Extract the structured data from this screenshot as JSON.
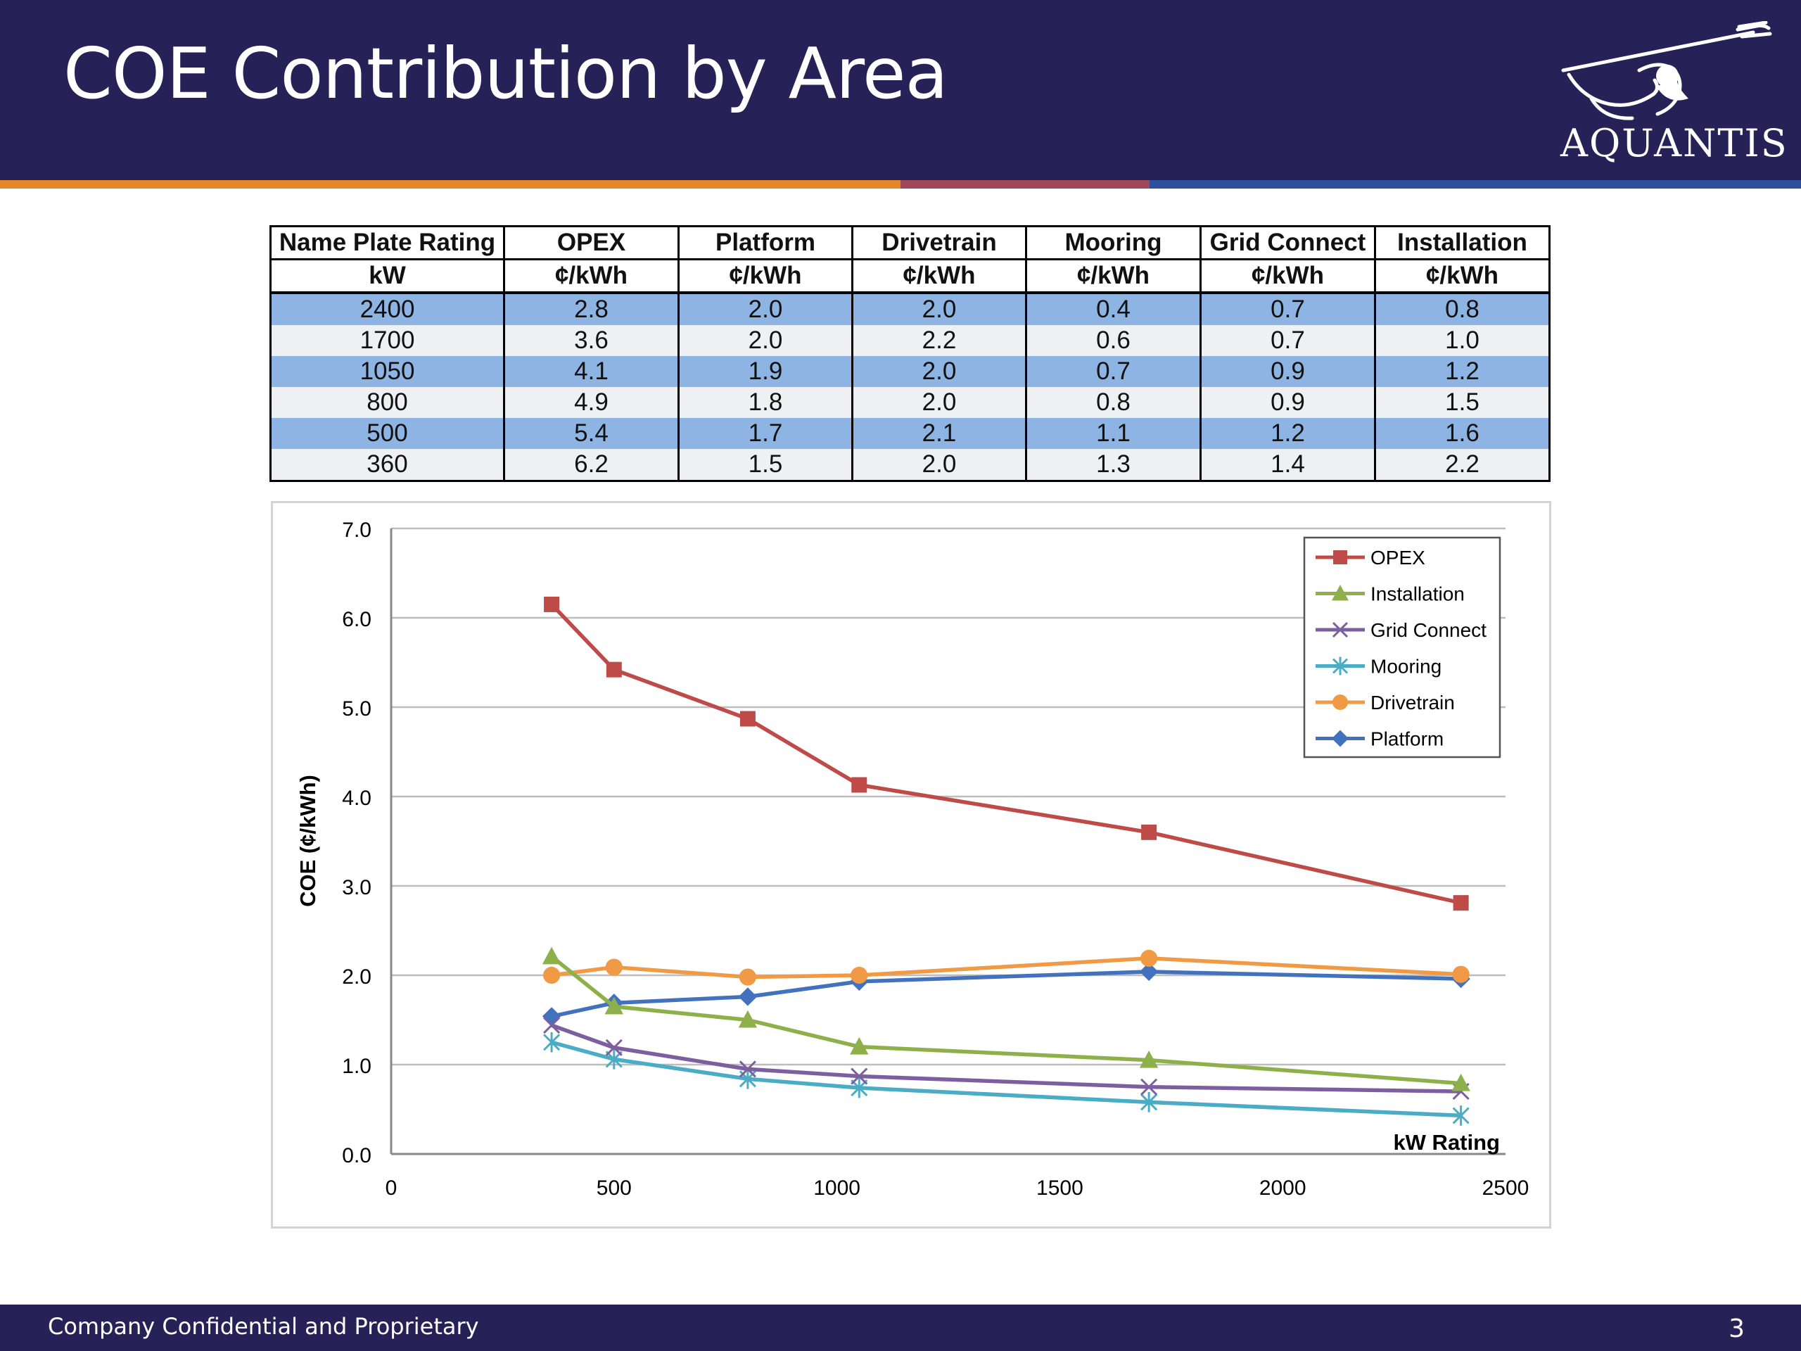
{
  "slide": {
    "title": "COE Contribution by Area",
    "logo_text": "AQUANTIS",
    "footer_text": "Company Confidential and Proprietary",
    "page_number": "3"
  },
  "table": {
    "headers": [
      "Name Plate Rating",
      "OPEX",
      "Platform",
      "Drivetrain",
      "Mooring",
      "Grid Connect",
      "Installation"
    ],
    "units": [
      "kW",
      "¢/kWh",
      "¢/kWh",
      "¢/kWh",
      "¢/kWh",
      "¢/kWh",
      "¢/kWh"
    ],
    "rows": [
      [
        "2400",
        "2.8",
        "2.0",
        "2.0",
        "0.4",
        "0.7",
        "0.8"
      ],
      [
        "1700",
        "3.6",
        "2.0",
        "2.2",
        "0.6",
        "0.7",
        "1.0"
      ],
      [
        "1050",
        "4.1",
        "1.9",
        "2.0",
        "0.7",
        "0.9",
        "1.2"
      ],
      [
        "800",
        "4.9",
        "1.8",
        "2.0",
        "0.8",
        "0.9",
        "1.5"
      ],
      [
        "500",
        "5.4",
        "1.7",
        "2.1",
        "1.1",
        "1.2",
        "1.6"
      ],
      [
        "360",
        "6.2",
        "1.5",
        "2.0",
        "1.3",
        "1.4",
        "2.2"
      ]
    ]
  },
  "chart_data": {
    "type": "line",
    "xlabel": "kW Rating",
    "ylabel": "COE (¢/kWh)",
    "xlim": [
      0,
      2500
    ],
    "ylim": [
      0,
      7
    ],
    "x_ticks": [
      "0",
      "500",
      "1000",
      "1500",
      "2000",
      "2500"
    ],
    "y_ticks": [
      "0.0",
      "1.0",
      "2.0",
      "3.0",
      "4.0",
      "5.0",
      "6.0",
      "7.0"
    ],
    "grid": "horizontal",
    "legend_position": "top-right",
    "x": [
      360,
      500,
      800,
      1050,
      1700,
      2400
    ],
    "series": [
      {
        "name": "OPEX",
        "color": "#be4b48",
        "marker": "square",
        "values": [
          6.15,
          5.42,
          4.87,
          4.13,
          3.6,
          2.81
        ]
      },
      {
        "name": "Installation",
        "color": "#8db04a",
        "marker": "triangle",
        "values": [
          2.21,
          1.65,
          1.5,
          1.2,
          1.05,
          0.79
        ]
      },
      {
        "name": "Grid Connect",
        "color": "#7d5fa0",
        "marker": "x",
        "values": [
          1.44,
          1.19,
          0.95,
          0.87,
          0.75,
          0.7
        ]
      },
      {
        "name": "Mooring",
        "color": "#4aacc5",
        "marker": "star",
        "values": [
          1.25,
          1.06,
          0.84,
          0.74,
          0.58,
          0.43
        ]
      },
      {
        "name": "Drivetrain",
        "color": "#f09a45",
        "marker": "circle",
        "values": [
          2.0,
          2.09,
          1.98,
          2.0,
          2.19,
          2.01
        ]
      },
      {
        "name": "Platform",
        "color": "#4272bd",
        "marker": "diamond",
        "values": [
          1.54,
          1.69,
          1.76,
          1.93,
          2.04,
          1.96
        ]
      }
    ]
  }
}
